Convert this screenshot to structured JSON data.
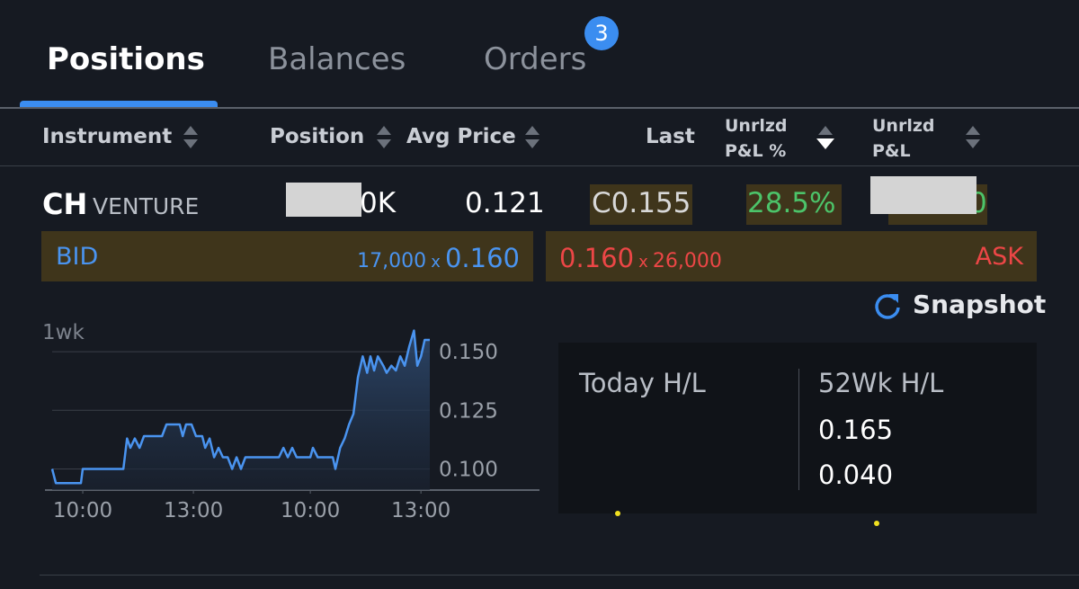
{
  "tabs": [
    {
      "label": "Positions",
      "active": true
    },
    {
      "label": "Balances",
      "active": false
    },
    {
      "label": "Orders",
      "active": false,
      "badge": 3
    }
  ],
  "table": {
    "headers": [
      "Instrument",
      "Position",
      "Avg Price",
      "Last",
      "Unrlzd P&L %",
      "Unrlzd P&L"
    ],
    "row": {
      "symbol": "CH",
      "exchange": "VENTURE",
      "position": "0K",
      "avg_price": "0.121",
      "last": "C0.155",
      "pnl_pct": "28.5%",
      "pnl": "0"
    }
  },
  "quote": {
    "bid_label": "BID",
    "bid_size": "17,000",
    "bid_sep": "x",
    "bid_price": "0.160",
    "ask_price": "0.160",
    "ask_sep": "x",
    "ask_size": "26,000",
    "ask_label": "ASK"
  },
  "snapshot": "Snapshot",
  "chart_data": {
    "type": "line",
    "title": "1wk",
    "color": "#4a94f0",
    "x": [
      -0.83,
      -0.73,
      -0.05,
      0,
      1.1,
      1.2,
      1.29,
      1.41,
      1.54,
      1.66,
      1.78,
      2.15,
      2.27,
      2.63,
      2.71,
      2.8,
      2.95,
      3.07,
      3.24,
      3.32,
      3.44,
      3.56,
      3.68,
      3.8,
      3.93,
      4.05,
      4.17,
      4.29,
      4.41,
      5.32,
      5.44,
      5.56,
      5.68,
      5.8,
      6.17,
      6.24,
      6.37,
      6.78,
      6.85,
      6.98,
      7.1,
      7.22,
      7.34,
      7.46,
      7.59,
      7.71,
      7.8,
      7.9,
      8,
      8.15,
      8.24,
      8.37,
      8.49,
      8.61,
      8.73,
      8.85,
      8.98,
      9.07,
      9.17,
      9.27,
      9.41
    ],
    "values": [
      0.1,
      0.094,
      0.094,
      0.1,
      0.1,
      0.113,
      0.109,
      0.113,
      0.109,
      0.114,
      0.114,
      0.114,
      0.119,
      0.119,
      0.114,
      0.119,
      0.119,
      0.114,
      0.114,
      0.109,
      0.113,
      0.105,
      0.109,
      0.105,
      0.105,
      0.1,
      0.105,
      0.1,
      0.105,
      0.105,
      0.109,
      0.105,
      0.109,
      0.105,
      0.105,
      0.109,
      0.105,
      0.105,
      0.1,
      0.109,
      0.113,
      0.119,
      0.1235,
      0.139,
      0.148,
      0.141,
      0.148,
      0.142,
      0.148,
      0.144,
      0.141,
      0.144,
      0.142,
      0.148,
      0.144,
      0.152,
      0.159,
      0.144,
      0.148,
      0.155,
      0.155
    ],
    "xlim": [
      -0.83,
      9.41
    ],
    "ylim": [
      0.091,
      0.16
    ],
    "xticks": [
      {
        "value": 0,
        "label": "10:00"
      },
      {
        "value": 3,
        "label": "13:00"
      },
      {
        "value": 6.17,
        "label": "10:00"
      },
      {
        "value": 9.17,
        "label": "13:00"
      }
    ],
    "yticks": [
      {
        "value": 0.15,
        "label": "0.150"
      },
      {
        "value": 0.125,
        "label": "0.125"
      },
      {
        "value": 0.1,
        "label": "0.100"
      }
    ],
    "grid": true
  },
  "stats": {
    "today_label": "Today H/L",
    "week52_label": "52Wk H/L",
    "week52_high": "0.165",
    "week52_low": "0.040"
  }
}
